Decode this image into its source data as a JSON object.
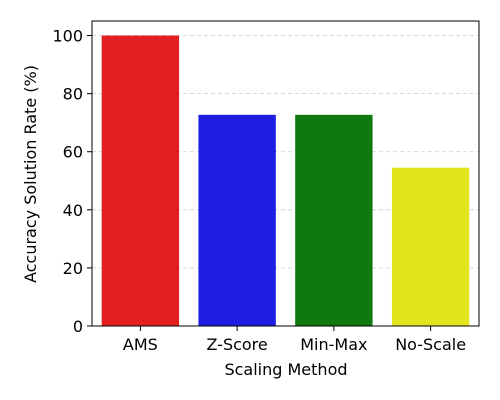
{
  "chart_data": {
    "type": "bar",
    "x_label": "Scaling Method",
    "y_label": "Accuracy Solution Rate (%)",
    "categories": [
      "AMS",
      "Z-Score",
      "Min-Max",
      "No-Scale"
    ],
    "values": [
      100,
      72.7,
      72.7,
      54.5
    ],
    "colors": [
      "#e31e1e",
      "#1e1ee3",
      "#0f780f",
      "#e3e31e"
    ],
    "ylim": [
      0,
      105
    ],
    "yticks": [
      0,
      20,
      40,
      60,
      80,
      100
    ],
    "grid": true
  }
}
